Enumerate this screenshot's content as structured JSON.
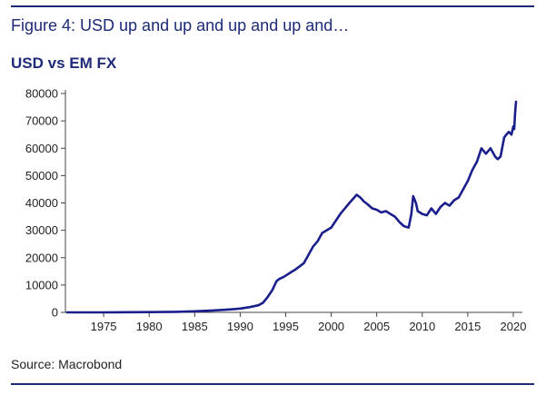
{
  "figure_title": "Figure 4: USD up and up and up and up and…",
  "source": "Source: Macrobond",
  "colors": {
    "accent": "#1f2a78",
    "line": "#1a1f8c"
  },
  "chart_data": {
    "type": "line",
    "title": "USD vs EM FX",
    "xlabel": "",
    "ylabel": "",
    "xlim": [
      1970.8,
      2021.0
    ],
    "ylim": [
      0,
      80000
    ],
    "grid": false,
    "legend": "none",
    "x_ticks": [
      1975,
      1980,
      1985,
      1990,
      1995,
      2000,
      2005,
      2010,
      2015,
      2020
    ],
    "y_ticks": [
      0,
      10000,
      20000,
      30000,
      40000,
      50000,
      60000,
      70000,
      80000
    ],
    "series": [
      {
        "x": [
          1971,
          1975,
          1980,
          1983,
          1985,
          1987,
          1989,
          1990,
          1991,
          1992,
          1992.5,
          1993,
          1993.5,
          1994,
          1994.3,
          1994.8,
          1995.5,
          1996,
          1997,
          1997.5,
          1998,
          1998.5,
          1999,
          2000,
          2001,
          2002,
          2002.8,
          2003.2,
          2003.6,
          2004,
          2004.5,
          2005,
          2005.5,
          2006,
          2006.5,
          2007,
          2007.5,
          2008,
          2008.5,
          2008.8,
          2009,
          2009.3,
          2009.5,
          2010,
          2010.5,
          2011,
          2011.5,
          2012,
          2012.5,
          2013,
          2013.5,
          2014,
          2014.5,
          2015,
          2015.5,
          2016,
          2016.5,
          2017,
          2017.5,
          2018,
          2018.3,
          2018.6,
          2019,
          2019.5,
          2019.8,
          2020,
          2020.1,
          2020.2,
          2020.3
        ],
        "values": [
          0,
          0,
          100,
          200,
          400,
          700,
          1100,
          1400,
          1900,
          2600,
          3500,
          5500,
          8000,
          11500,
          12200,
          13000,
          14500,
          15500,
          18000,
          21000,
          24000,
          26000,
          29000,
          31000,
          36000,
          40000,
          43000,
          42000,
          40500,
          39500,
          38000,
          37500,
          36500,
          37000,
          36000,
          35000,
          33000,
          31500,
          31000,
          36000,
          42500,
          40000,
          37000,
          36000,
          35500,
          38000,
          36000,
          38500,
          40000,
          39000,
          41000,
          42000,
          45000,
          48000,
          52000,
          55000,
          60000,
          58000,
          60000,
          57000,
          56000,
          57000,
          64000,
          66000,
          65000,
          68000,
          67000,
          73000,
          77000
        ]
      }
    ]
  }
}
